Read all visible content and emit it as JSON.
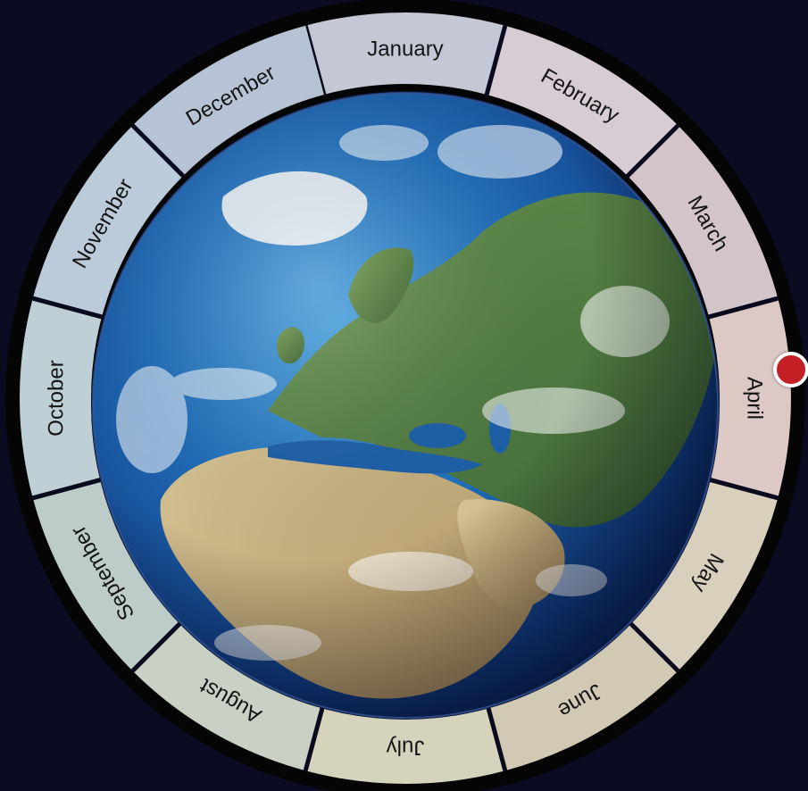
{
  "wheel": {
    "months": [
      {
        "label": "January"
      },
      {
        "label": "February"
      },
      {
        "label": "March"
      },
      {
        "label": "April"
      },
      {
        "label": "May"
      },
      {
        "label": "June"
      },
      {
        "label": "July"
      },
      {
        "label": "August"
      },
      {
        "label": "September"
      },
      {
        "label": "October"
      },
      {
        "label": "November"
      },
      {
        "label": "December"
      }
    ],
    "selected_month": "April"
  },
  "colors": {
    "background": "#0b0b22",
    "rim": "#050505",
    "indicator": "#c41f24",
    "divider": "#0a0a1e",
    "ocean": "#1d5fa8",
    "land_green": "#4f7a3a",
    "land_desert": "#c9b283",
    "cloud": "#ffffff"
  },
  "icons": {
    "center": "earth-globe-icon",
    "indicator": "red-dot-marker-icon"
  }
}
